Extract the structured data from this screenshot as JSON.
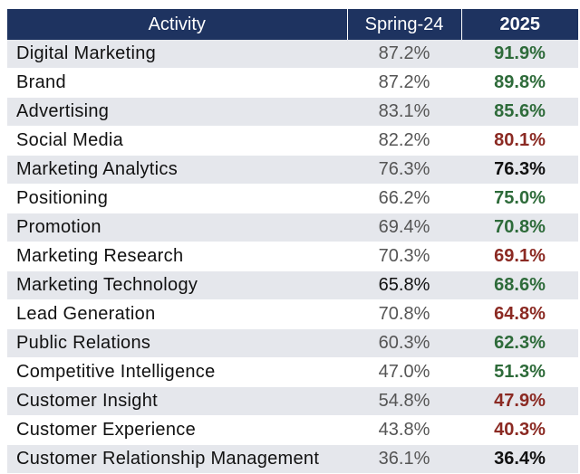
{
  "table": {
    "headers": {
      "activity": "Activity",
      "spring": "Spring-24",
      "y2025": "2025"
    },
    "colors": {
      "header_bg": "#1e3360",
      "increase": "#2e6b3a",
      "decrease": "#8b2a23",
      "unchanged": "#111111",
      "stripe": "#e5e7ec"
    },
    "rows": [
      {
        "activity": "Digital Marketing",
        "spring": "87.2%",
        "y2025": "91.9%",
        "trend": "up"
      },
      {
        "activity": "Brand",
        "spring": "87.2%",
        "y2025": "89.8%",
        "trend": "up"
      },
      {
        "activity": "Advertising",
        "spring": "83.1%",
        "y2025": "85.6%",
        "trend": "up"
      },
      {
        "activity": "Social Media",
        "spring": "82.2%",
        "y2025": "80.1%",
        "trend": "down"
      },
      {
        "activity": "Marketing Analytics",
        "spring": "76.3%",
        "y2025": "76.3%",
        "trend": "flat"
      },
      {
        "activity": "Positioning",
        "spring": "66.2%",
        "y2025": "75.0%",
        "trend": "up"
      },
      {
        "activity": "Promotion",
        "spring": "69.4%",
        "y2025": "70.8%",
        "trend": "up"
      },
      {
        "activity": "Marketing Research",
        "spring": "70.3%",
        "y2025": "69.1%",
        "trend": "down"
      },
      {
        "activity": "Marketing Technology",
        "spring": "65.8%",
        "y2025": "68.6%",
        "trend": "up"
      },
      {
        "activity": "Lead Generation",
        "spring": "70.8%",
        "y2025": "64.8%",
        "trend": "down"
      },
      {
        "activity": "Public Relations",
        "spring": "60.3%",
        "y2025": "62.3%",
        "trend": "up"
      },
      {
        "activity": "Competitive Intelligence",
        "spring": "47.0%",
        "y2025": "51.3%",
        "trend": "up"
      },
      {
        "activity": "Customer Insight",
        "spring": "54.8%",
        "y2025": "47.9%",
        "trend": "down"
      },
      {
        "activity": "Customer Experience",
        "spring": "43.8%",
        "y2025": "40.3%",
        "trend": "down"
      },
      {
        "activity": "Customer Relationship Management",
        "spring": "36.1%",
        "y2025": "36.4%",
        "trend": "flat"
      }
    ]
  }
}
